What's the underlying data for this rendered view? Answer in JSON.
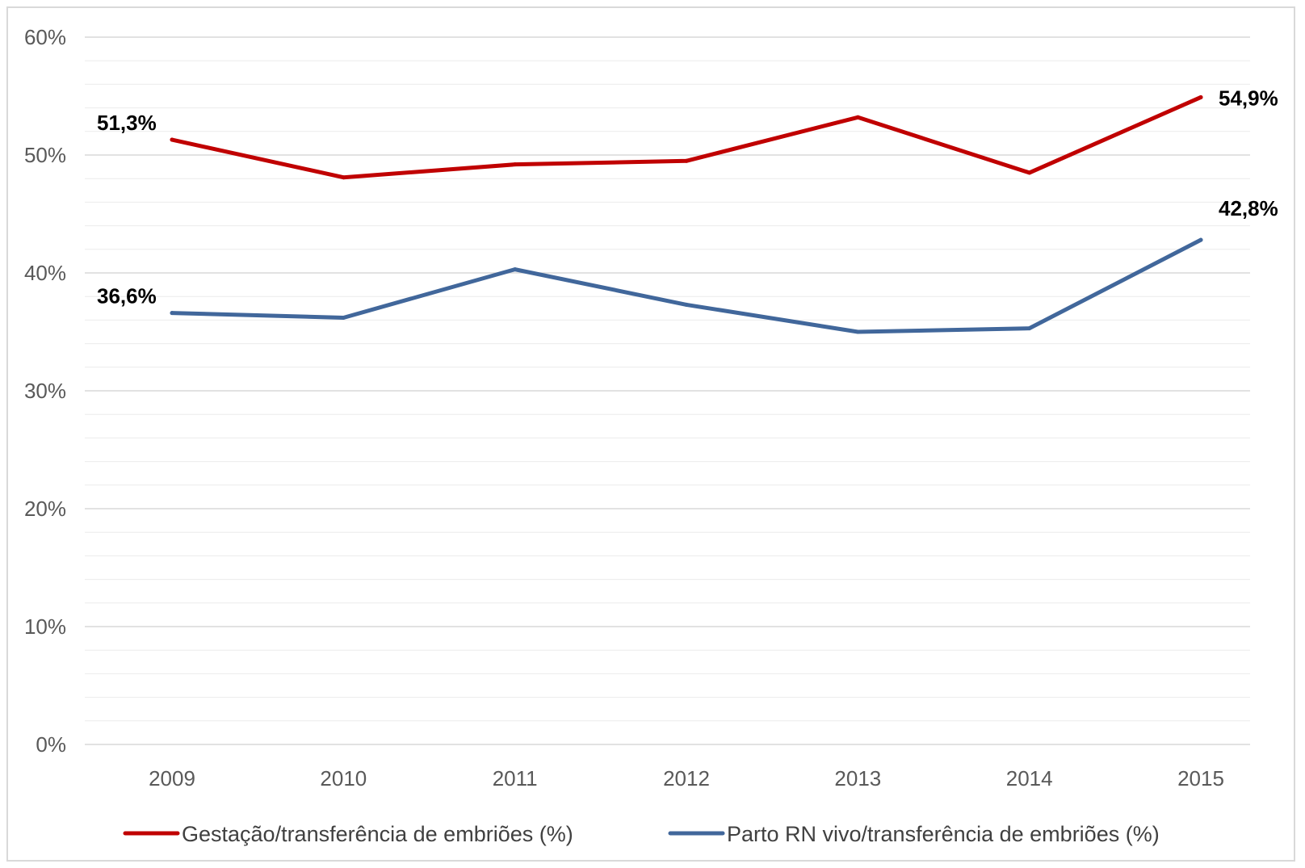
{
  "chart_data": {
    "type": "line",
    "categories": [
      "2009",
      "2010",
      "2011",
      "2012",
      "2013",
      "2014",
      "2015"
    ],
    "ylim": [
      0,
      60
    ],
    "y_ticks": [
      "0%",
      "10%",
      "20%",
      "30%",
      "40%",
      "50%",
      "60%"
    ],
    "grid": true,
    "legend_position": "bottom",
    "series": [
      {
        "name": "Gestação/transferência de embriões (%)",
        "color": "#c00000",
        "values": [
          51.3,
          48.1,
          49.2,
          49.5,
          53.2,
          48.5,
          54.9
        ],
        "labels": {
          "0": "51,3%",
          "6": "54,9%"
        }
      },
      {
        "name": "Parto RN vivo/transferência de embriões (%)",
        "color": "#41679b",
        "values": [
          36.6,
          36.2,
          40.3,
          37.3,
          35.0,
          35.3,
          42.8
        ],
        "labels": {
          "0": "36,6%",
          "6": "42,8%"
        }
      }
    ]
  }
}
